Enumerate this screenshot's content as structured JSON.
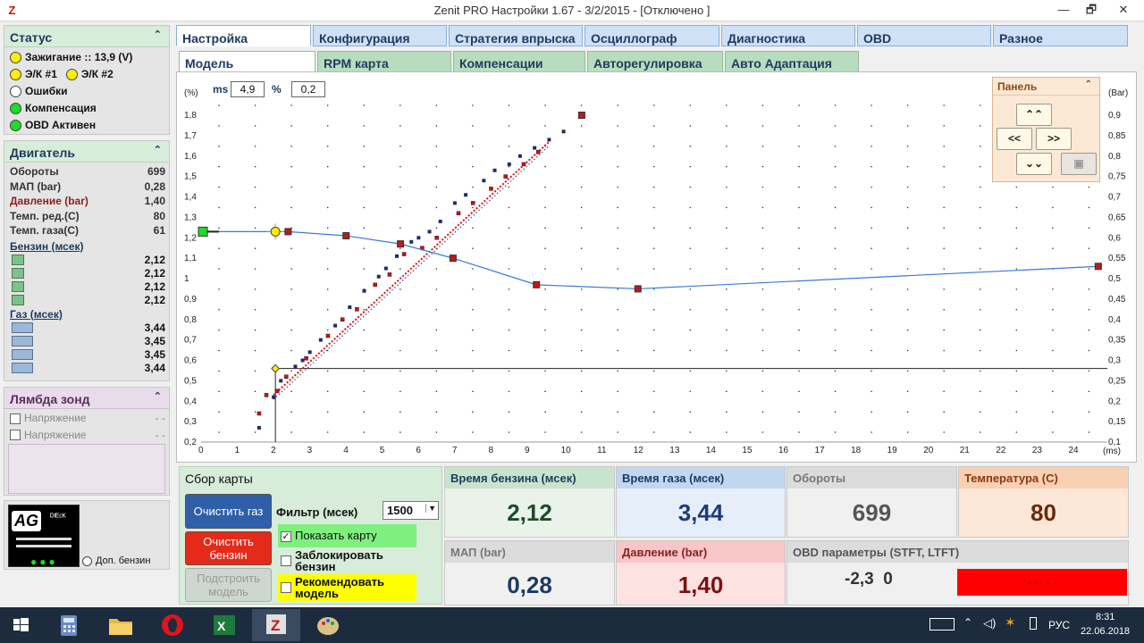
{
  "window": {
    "title": "Zenit PRO Настройки 1.67 - 3/2/2015  - [Отключено ]",
    "logo": "Z",
    "min": "—",
    "max": "🗗",
    "close": "✕"
  },
  "status_panel": {
    "title": "Статус",
    "items": [
      {
        "label": "Зажигание :: 13,9 (V)",
        "color": "yellow"
      },
      {
        "label": "Э/К #1",
        "label2": "Э/К #2",
        "color": "yellow"
      },
      {
        "label": "Ошибки",
        "color": "white"
      },
      {
        "label": "Компенсация",
        "color": "green"
      },
      {
        "label": "OBD Активен",
        "color": "green"
      }
    ]
  },
  "engine_panel": {
    "title": "Двигатель",
    "rows": [
      {
        "label": "Обороты",
        "value": "699"
      },
      {
        "label": "МАП (bar)",
        "value": "0,28"
      },
      {
        "label": "Давление (bar)",
        "value": "1,40"
      },
      {
        "label": "Темп. ред.(C)",
        "value": "80"
      },
      {
        "label": "Темп. газа(C)",
        "value": "61"
      }
    ],
    "petrol_head": "Бензин (мсек)",
    "petrol": [
      "2,12",
      "2,12",
      "2,12",
      "2,12"
    ],
    "gas_head": "Газ (мсек)",
    "gas": [
      "3,44",
      "3,45",
      "3,45",
      "3,44"
    ]
  },
  "lambda_panel": {
    "title": "Лямбда зонд",
    "rows": [
      {
        "label": "Напряжение",
        "value": "- -"
      },
      {
        "label": "Напряжение",
        "value": "- -"
      }
    ]
  },
  "logo_box": {
    "logo_text": "AG",
    "sub": "ᴰᴵᴱᶜᴷ",
    "label": "Доп. бензин"
  },
  "tabs_main": [
    "Настройка",
    "Конфигурация",
    "Стратегия впрыска",
    "Осциллограф",
    "Диагностика",
    "OBD",
    "Разное"
  ],
  "tabs_sub": [
    "Модель",
    "RPM карта",
    "Компенсации",
    "Авторегулировка",
    "Авто Адаптация"
  ],
  "chart_header": {
    "ms_label": "ms",
    "ms_value": "4,9",
    "pct_label": "%",
    "pct_value": "0,2"
  },
  "panel_widget": {
    "title": "Панель",
    "up": "⌃⌃",
    "left": "<<",
    "right": ">>",
    "down": "⌄⌄"
  },
  "chart_data": {
    "type": "scatter",
    "xlabel": "(ms)",
    "ylabel_left": "(%)",
    "ylabel_right": "(Bar)",
    "xlim": [
      0,
      25
    ],
    "ylim_left": [
      0.2,
      1.9
    ],
    "ylim_right": [
      0.1,
      0.95
    ],
    "x_ticks": [
      0,
      1,
      2,
      3,
      4,
      5,
      6,
      7,
      8,
      9,
      10,
      11,
      12,
      13,
      14,
      15,
      16,
      17,
      18,
      19,
      20,
      21,
      22,
      23,
      24
    ],
    "y_ticks_left": [
      "0,2",
      "0,3",
      "0,4",
      "0,5",
      "0,6",
      "0,7",
      "0,8",
      "0,9",
      "1",
      "1,1",
      "1,2",
      "1,3",
      "1,4",
      "1,5",
      "1,6",
      "1,7",
      "1,8"
    ],
    "y_ticks_right": [
      "0,1",
      "0,15",
      "0,2",
      "0,25",
      "0,3",
      "0,35",
      "0,4",
      "0,45",
      "0,5",
      "0,55",
      "0,6",
      "0,65",
      "0,7",
      "0,75",
      "0,8",
      "0,85",
      "0,9"
    ],
    "grid": "dotted",
    "correction_curve": [
      [
        0.05,
        1.23
      ],
      [
        2.05,
        1.23
      ],
      [
        2.4,
        1.23
      ],
      [
        4.0,
        1.21
      ],
      [
        5.5,
        1.17
      ],
      [
        6.95,
        1.1
      ],
      [
        9.25,
        0.97
      ],
      [
        12.05,
        0.95
      ],
      [
        24.75,
        1.06
      ]
    ],
    "red_markers": [
      [
        2.4,
        1.23
      ],
      [
        4.0,
        1.21
      ],
      [
        5.5,
        1.17
      ],
      [
        6.95,
        1.1
      ],
      [
        9.25,
        0.97
      ],
      [
        12.05,
        0.95
      ],
      [
        24.75,
        1.06
      ],
      [
        10.5,
        1.8
      ]
    ],
    "yellow_marker": [
      2.05,
      1.23
    ],
    "green_marker": [
      0.05,
      1.23
    ],
    "reference_line": {
      "x": 2.05,
      "y": 0.56
    },
    "points_dark": [
      [
        1.6,
        0.27
      ],
      [
        2.0,
        0.42
      ],
      [
        2.2,
        0.5
      ],
      [
        2.6,
        0.57
      ],
      [
        2.8,
        0.6
      ],
      [
        3.0,
        0.64
      ],
      [
        3.3,
        0.7
      ],
      [
        3.7,
        0.77
      ],
      [
        4.1,
        0.86
      ],
      [
        4.5,
        0.94
      ],
      [
        4.9,
        1.01
      ],
      [
        5.1,
        1.05
      ],
      [
        5.4,
        1.11
      ],
      [
        5.8,
        1.18
      ],
      [
        6.0,
        1.2
      ],
      [
        6.3,
        1.23
      ],
      [
        6.6,
        1.28
      ],
      [
        7.0,
        1.37
      ],
      [
        7.3,
        1.41
      ],
      [
        7.8,
        1.48
      ],
      [
        8.1,
        1.53
      ],
      [
        8.5,
        1.56
      ],
      [
        8.8,
        1.6
      ],
      [
        9.2,
        1.64
      ],
      [
        9.6,
        1.68
      ],
      [
        10.0,
        1.72
      ]
    ],
    "points_red": [
      [
        1.6,
        0.34
      ],
      [
        1.8,
        0.43
      ],
      [
        2.1,
        0.45
      ],
      [
        2.35,
        0.52
      ],
      [
        2.9,
        0.61
      ],
      [
        3.5,
        0.72
      ],
      [
        3.9,
        0.8
      ],
      [
        4.3,
        0.85
      ],
      [
        4.8,
        0.97
      ],
      [
        5.2,
        1.02
      ],
      [
        5.6,
        1.12
      ],
      [
        6.1,
        1.15
      ],
      [
        6.5,
        1.2
      ],
      [
        7.1,
        1.32
      ],
      [
        7.5,
        1.37
      ],
      [
        8.0,
        1.44
      ],
      [
        8.4,
        1.5
      ],
      [
        8.9,
        1.56
      ],
      [
        9.3,
        1.62
      ]
    ]
  },
  "map_collect": {
    "title": "Сбор карты",
    "clear_gas": "Очистить газ",
    "clear_petrol": "Очистить\nбензин",
    "fit_model": "Подстроить\nмодель",
    "filter_label": "Фильтр (мсек)",
    "filter_value": "1500",
    "show_map": "Показать карту",
    "block_petrol": "Заблокировать\nбензин",
    "recommend_model": "Рекомендовать\nмодель"
  },
  "readouts": {
    "petrol_time": {
      "label": "Время бензина (мсек)",
      "value": "2,12"
    },
    "gas_time": {
      "label": "Время газа (мсек)",
      "value": "3,44"
    },
    "rpm": {
      "label": "Обороты",
      "value": "699"
    },
    "temp": {
      "label": "Температура (C)",
      "value": "80"
    },
    "map": {
      "label": "МАП (bar)",
      "value": "0,28"
    },
    "pressure": {
      "label": "Давление (bar)",
      "value": "1,40"
    },
    "obd": {
      "label": "OBD параметры (STFT, LTFT)",
      "value": "-2,3  0",
      "red_text": "- -   - -"
    }
  },
  "taskbar": {
    "lang": "РУС",
    "time": "8:31",
    "date": "22.06.2018"
  },
  "colors": {
    "accent_green": "#d7ecd9",
    "tab_blue": "#cfe1f6",
    "alarm_red": "#ff0000"
  }
}
